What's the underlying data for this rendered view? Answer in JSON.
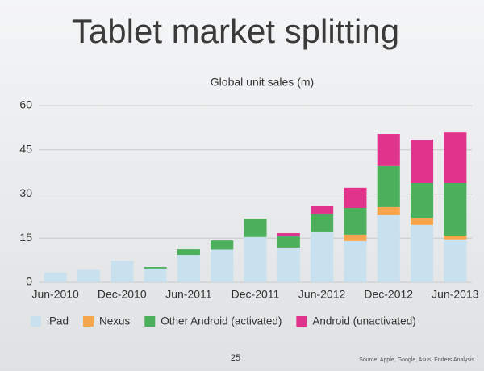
{
  "chart_data": {
    "type": "stacked-bar",
    "title": "Tablet market splitting",
    "subtitle": "Global unit sales (m)",
    "page_number": "25",
    "source": "Source: Apple, Google, Asus, Enders Analysis",
    "categories": [
      "Jun-2010",
      null,
      "Dec-2010",
      null,
      "Jun-2011",
      null,
      "Dec-2011",
      null,
      "Jun-2012",
      null,
      "Dec-2012",
      null,
      "Jun-2013"
    ],
    "series": [
      {
        "name": "iPad",
        "color": "#c9e0ee",
        "values": [
          3.3,
          4.2,
          7.3,
          4.7,
          9.3,
          11.1,
          15.4,
          11.8,
          17.0,
          14.0,
          22.9,
          19.5,
          14.6
        ]
      },
      {
        "name": "Nexus",
        "color": "#f5a54c",
        "values": [
          0,
          0,
          0,
          0,
          0,
          0,
          0,
          0,
          0,
          2.2,
          2.6,
          2.4,
          1.3
        ]
      },
      {
        "name": "Other Android (activated)",
        "color": "#4caf5c",
        "values": [
          0,
          0,
          0,
          0.5,
          1.9,
          3.1,
          6.2,
          3.8,
          6.3,
          9.0,
          14.0,
          11.8,
          17.8
        ]
      },
      {
        "name": "Android (unactivated)",
        "color": "#e0338c",
        "values": [
          0,
          0,
          0,
          0,
          0,
          0,
          0,
          1.1,
          2.5,
          6.9,
          10.9,
          14.8,
          17.2
        ]
      }
    ],
    "ylim": [
      0,
      60
    ],
    "yticks": [
      0,
      15,
      30,
      45,
      60
    ],
    "grid": true
  }
}
